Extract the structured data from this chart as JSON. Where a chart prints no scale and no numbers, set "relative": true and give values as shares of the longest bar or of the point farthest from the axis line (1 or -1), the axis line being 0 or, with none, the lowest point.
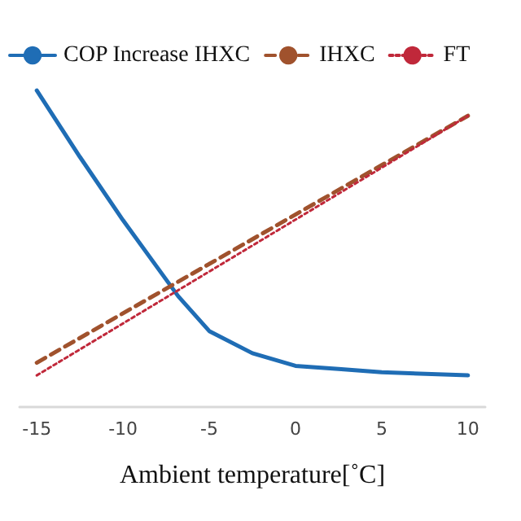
{
  "chart_data": {
    "type": "line",
    "relative": true,
    "xlabel": "Ambient temperature[˚C]",
    "xlim": [
      -16,
      11
    ],
    "xticks": [
      -15,
      -10,
      -5,
      0,
      5,
      10
    ],
    "legend": "top",
    "grid": false,
    "marker": "none",
    "series": [
      {
        "name": "COP Increase IHXC",
        "color": "#1f6db5",
        "line_style": "solid",
        "x": [
          -15,
          -12.5,
          -10,
          -8,
          -6.8,
          -5,
          -2.5,
          0,
          2.5,
          5,
          10
        ],
        "values": [
          1,
          0.79,
          0.59,
          0.44,
          0.35,
          0.24,
          0.17,
          0.13,
          0.12,
          0.11,
          0.1
        ]
      },
      {
        "name": "IHXC",
        "color": "#a0522d",
        "line_style": "dashed",
        "x": [
          -15,
          10
        ],
        "values": [
          0.14,
          0.92
        ]
      },
      {
        "name": "FT",
        "color": "#c0283a",
        "line_style": "dotted",
        "x": [
          -15,
          10
        ],
        "values": [
          0.1,
          0.92
        ]
      }
    ]
  }
}
